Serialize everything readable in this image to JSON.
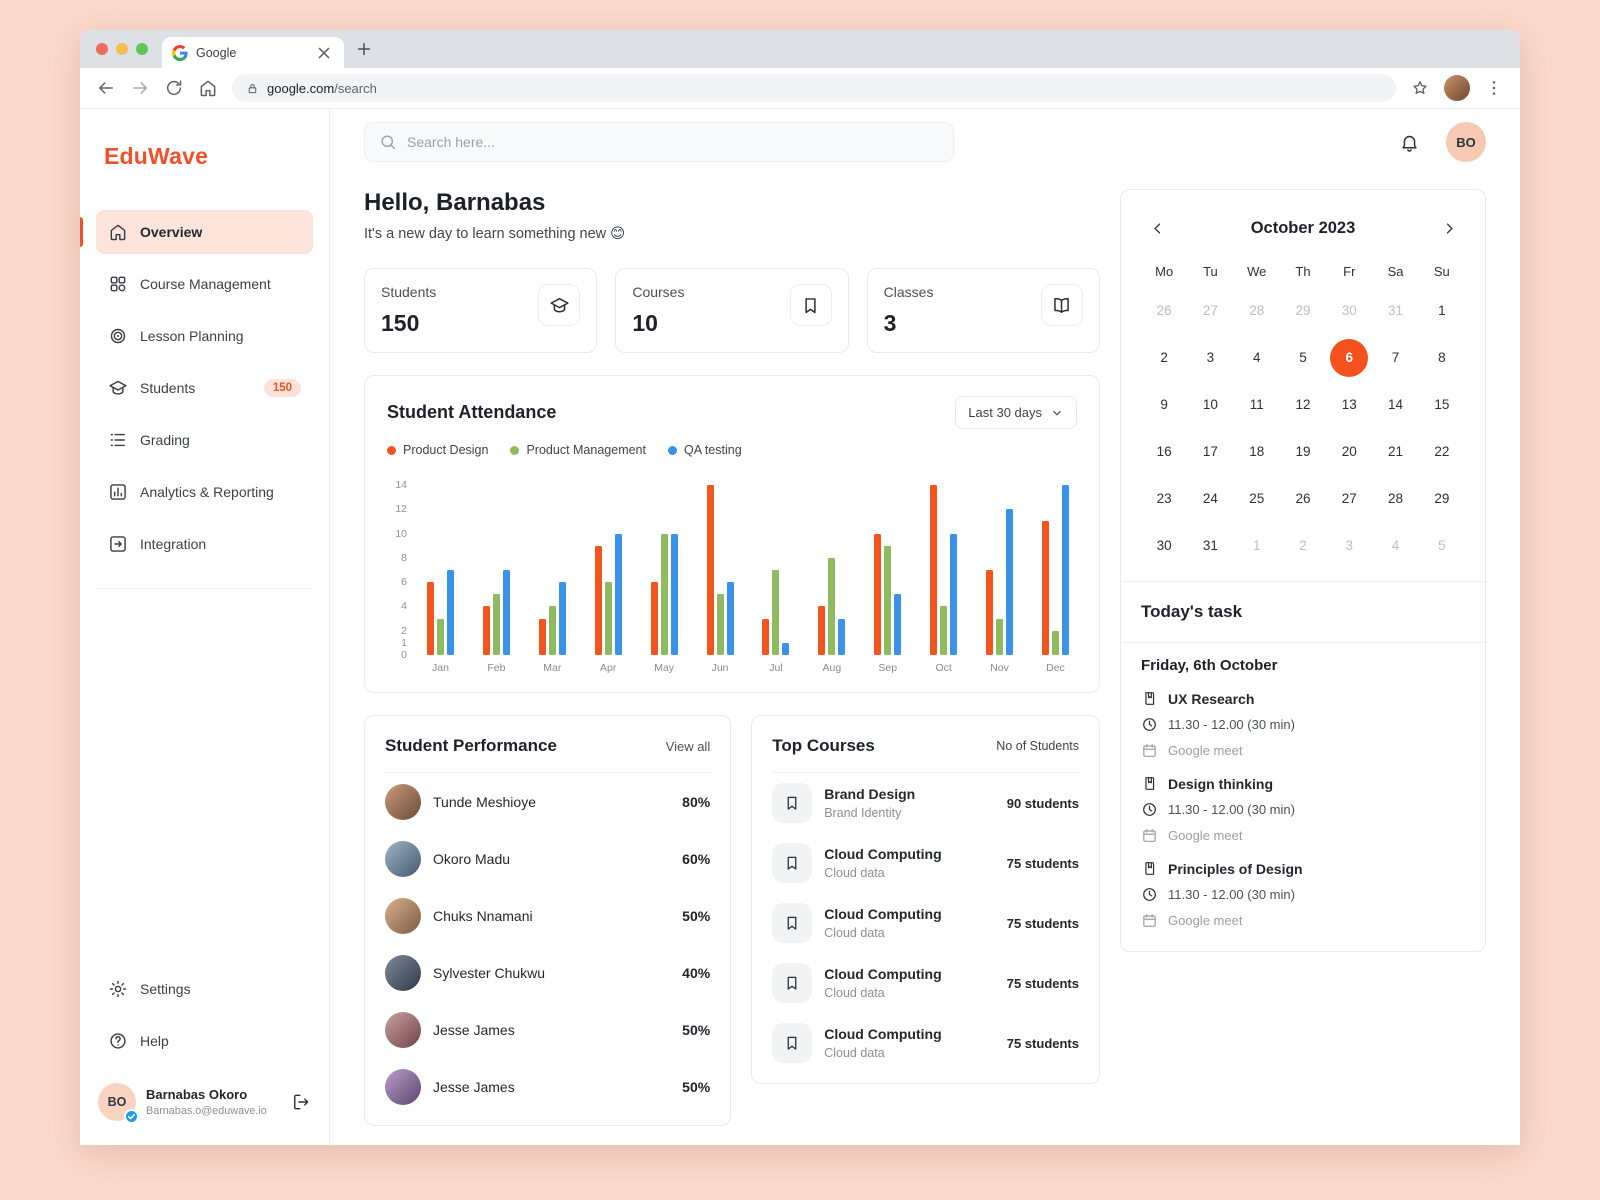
{
  "browser": {
    "tab_title": "Google",
    "url": {
      "domain": "google.com",
      "path": "/search"
    }
  },
  "sidebar": {
    "logo": "EduWave",
    "items": [
      {
        "label": "Overview",
        "icon": "home",
        "active": true
      },
      {
        "label": "Course Management",
        "icon": "grid",
        "active": false
      },
      {
        "label": "Lesson Planning",
        "icon": "target",
        "active": false
      },
      {
        "label": "Students",
        "icon": "grad-cap",
        "badge": "150",
        "active": false
      },
      {
        "label": "Grading",
        "icon": "rows",
        "active": false
      },
      {
        "label": "Analytics & Reporting",
        "icon": "bar-chart",
        "active": false
      },
      {
        "label": "Integration",
        "icon": "integration",
        "active": false
      }
    ],
    "footer_items": [
      {
        "label": "Settings",
        "icon": "gear"
      },
      {
        "label": "Help",
        "icon": "help"
      }
    ],
    "user": {
      "initials": "BO",
      "name": "Barnabas Okoro",
      "email": "Barnabas.o@eduwave.io"
    }
  },
  "topbar": {
    "search_placeholder": "Search here...",
    "avatar_initials": "BO"
  },
  "greeting": {
    "title": "Hello, Barnabas",
    "subtitle": "It's a new day to learn something new 😊"
  },
  "stats": [
    {
      "label": "Students",
      "value": "150",
      "icon": "grad-cap"
    },
    {
      "label": "Courses",
      "value": "10",
      "icon": "bookmark"
    },
    {
      "label": "Classes",
      "value": "3",
      "icon": "open-book"
    }
  ],
  "attendance": {
    "title": "Student Attendance",
    "filter_label": "Last 30 days"
  },
  "chart_data": {
    "type": "bar",
    "title": "Student Attendance",
    "categories": [
      "Jan",
      "Feb",
      "Mar",
      "Apr",
      "May",
      "Jun",
      "Jul",
      "Aug",
      "Sep",
      "Oct",
      "Nov",
      "Dec"
    ],
    "series": [
      {
        "name": "Product Design",
        "color": "#F4551F",
        "values": [
          6,
          4,
          3,
          9,
          6,
          14,
          3,
          4,
          10,
          14,
          7,
          11
        ]
      },
      {
        "name": "Product Management",
        "color": "#8FBA60",
        "values": [
          3,
          5,
          4,
          6,
          10,
          5,
          7,
          8,
          9,
          4,
          3,
          2
        ]
      },
      {
        "name": "QA testing",
        "color": "#3A93E8",
        "values": [
          7,
          7,
          6,
          10,
          10,
          6,
          1,
          3,
          5,
          10,
          12,
          14
        ]
      }
    ],
    "y_ticks": [
      0,
      1,
      2,
      4,
      6,
      8,
      10,
      12,
      14
    ],
    "ylim": [
      0,
      14
    ],
    "legend_position": "top-left",
    "grid": false,
    "xlabel": "",
    "ylabel": ""
  },
  "performance": {
    "title": "Student Performance",
    "view_all": "View all",
    "items": [
      {
        "name": "Tunde Meshioye",
        "score": "80%"
      },
      {
        "name": "Okoro Madu",
        "score": "60%"
      },
      {
        "name": "Chuks Nnamani",
        "score": "50%"
      },
      {
        "name": "Sylvester Chukwu",
        "score": "40%"
      },
      {
        "name": "Jesse James",
        "score": "50%"
      },
      {
        "name": "Jesse James",
        "score": "50%"
      }
    ]
  },
  "courses": {
    "title": "Top Courses",
    "col_header": "No of Students",
    "items": [
      {
        "name": "Brand Design",
        "sub": "Brand Identity",
        "students": "90 students"
      },
      {
        "name": "Cloud Computing",
        "sub": "Cloud data",
        "students": "75 students"
      },
      {
        "name": "Cloud Computing",
        "sub": "Cloud data",
        "students": "75 students"
      },
      {
        "name": "Cloud Computing",
        "sub": "Cloud data",
        "students": "75 students"
      },
      {
        "name": "Cloud Computing",
        "sub": "Cloud data",
        "students": "75 students"
      }
    ]
  },
  "calendar": {
    "title": "October 2023",
    "day_headers": [
      "Mo",
      "Tu",
      "We",
      "Th",
      "Fr",
      "Sa",
      "Su"
    ],
    "cells": [
      {
        "day": "26",
        "muted": true
      },
      {
        "day": "27",
        "muted": true
      },
      {
        "day": "28",
        "muted": true
      },
      {
        "day": "29",
        "muted": true
      },
      {
        "day": "30",
        "muted": true
      },
      {
        "day": "31",
        "muted": true
      },
      {
        "day": "1"
      },
      {
        "day": "2"
      },
      {
        "day": "3"
      },
      {
        "day": "4"
      },
      {
        "day": "5"
      },
      {
        "day": "6",
        "selected": true
      },
      {
        "day": "7"
      },
      {
        "day": "8"
      },
      {
        "day": "9"
      },
      {
        "day": "10"
      },
      {
        "day": "11"
      },
      {
        "day": "12"
      },
      {
        "day": "13"
      },
      {
        "day": "14"
      },
      {
        "day": "15"
      },
      {
        "day": "16"
      },
      {
        "day": "17"
      },
      {
        "day": "18"
      },
      {
        "day": "19"
      },
      {
        "day": "20"
      },
      {
        "day": "21"
      },
      {
        "day": "22"
      },
      {
        "day": "23"
      },
      {
        "day": "24"
      },
      {
        "day": "25"
      },
      {
        "day": "26"
      },
      {
        "day": "27"
      },
      {
        "day": "28"
      },
      {
        "day": "29"
      },
      {
        "day": "30"
      },
      {
        "day": "31"
      },
      {
        "day": "1",
        "muted": true
      },
      {
        "day": "2",
        "muted": true
      },
      {
        "day": "3",
        "muted": true
      },
      {
        "day": "4",
        "muted": true
      },
      {
        "day": "5",
        "muted": true
      }
    ]
  },
  "tasks": {
    "title": "Today's task",
    "date_label": "Friday, 6th October",
    "items": [
      {
        "title": "UX Research",
        "time": "11.30 - 12.00 (30 min)",
        "platform": "Google meet"
      },
      {
        "title": "Design thinking",
        "time": "11.30 - 12.00 (30 min)",
        "platform": "Google meet"
      },
      {
        "title": "Principles of Design",
        "time": "11.30 - 12.00 (30 min)",
        "platform": "Google meet"
      }
    ]
  },
  "colors": {
    "accent": "#F0502A",
    "accent_soft": "#FCE4DA",
    "calendar_selected": "#F4511E",
    "desktop_bg": "#FBD9CC"
  }
}
